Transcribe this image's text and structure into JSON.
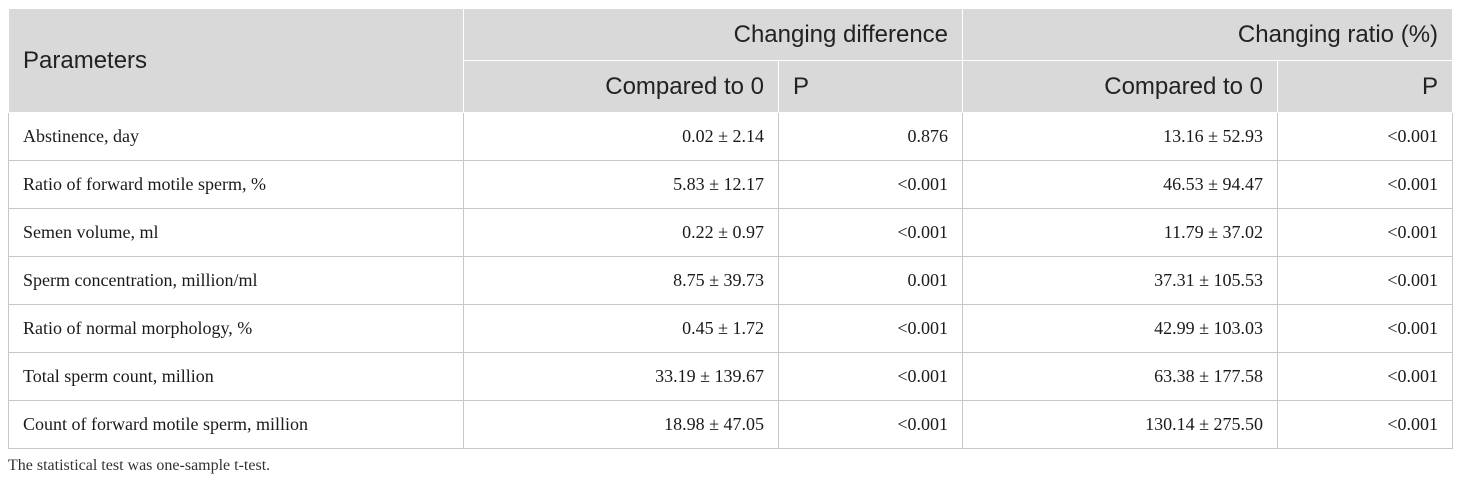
{
  "table": {
    "header": {
      "parameters": "Parameters",
      "group1": "Changing difference",
      "group2": "Changing ratio (%)",
      "sub1": "Compared to 0",
      "sub2": "P",
      "sub3": "Compared to 0",
      "sub4": "P"
    },
    "rows": [
      {
        "param": "Abstinence, day",
        "diff": "0.02 ± 2.14",
        "diff_p": "0.876",
        "ratio": "13.16 ± 52.93",
        "ratio_p": "<0.001"
      },
      {
        "param": "Ratio of forward motile sperm, %",
        "diff": "5.83 ± 12.17",
        "diff_p": "<0.001",
        "ratio": "46.53 ± 94.47",
        "ratio_p": "<0.001"
      },
      {
        "param": "Semen volume, ml",
        "diff": "0.22 ± 0.97",
        "diff_p": "<0.001",
        "ratio": "11.79 ± 37.02",
        "ratio_p": "<0.001"
      },
      {
        "param": "Sperm concentration, million/ml",
        "diff": "8.75 ± 39.73",
        "diff_p": "0.001",
        "ratio": "37.31 ± 105.53",
        "ratio_p": "<0.001"
      },
      {
        "param": "Ratio of normal morphology, %",
        "diff": "0.45 ± 1.72",
        "diff_p": "<0.001",
        "ratio": "42.99 ± 103.03",
        "ratio_p": "<0.001"
      },
      {
        "param": "Total sperm count, million",
        "diff": "33.19 ± 139.67",
        "diff_p": "<0.001",
        "ratio": "63.38 ± 177.58",
        "ratio_p": "<0.001"
      },
      {
        "param": "Count of forward motile sperm, million",
        "diff": "18.98 ± 47.05",
        "diff_p": "<0.001",
        "ratio": "130.14 ± 275.50",
        "ratio_p": "<0.001"
      }
    ]
  },
  "footnote": "The statistical test was one-sample t-test.",
  "colors": {
    "header_bg": "#d9d9d9",
    "grid": "#c8c8c8"
  }
}
